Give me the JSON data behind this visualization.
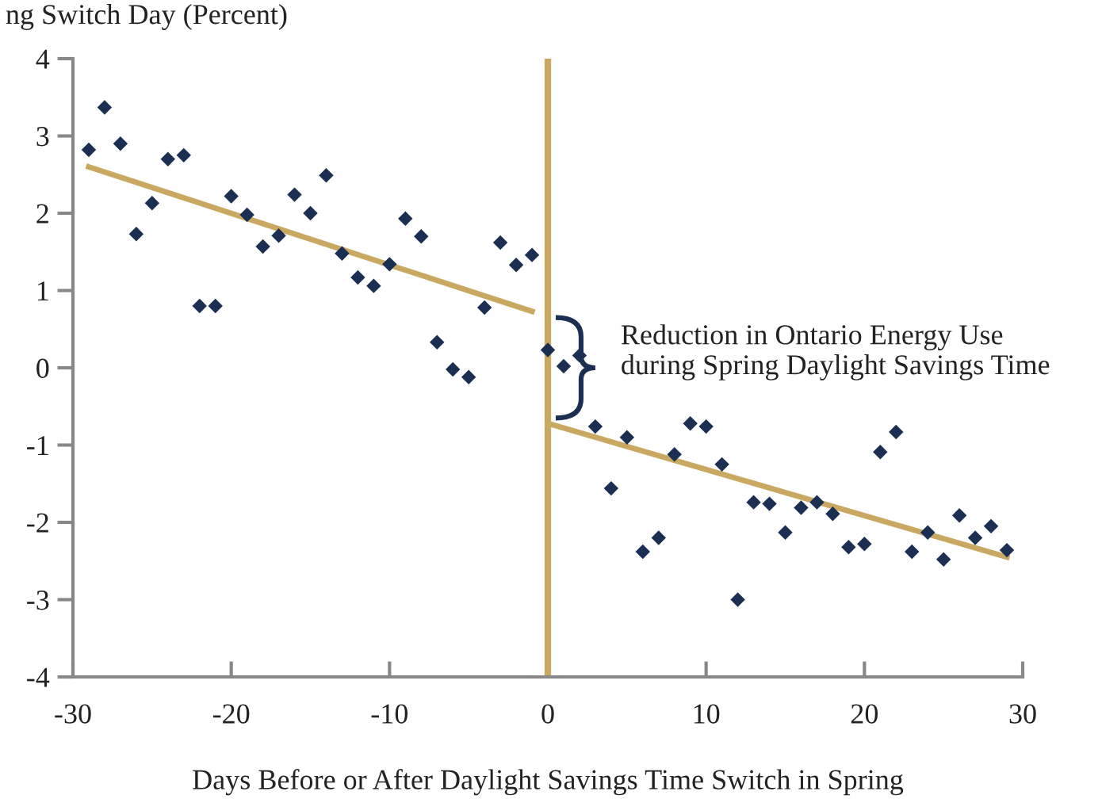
{
  "chart_data": {
    "type": "scatter",
    "ylabel": "ng Switch Day (Percent)",
    "xlabel": "Days Before or After Daylight Savings Time Switch in Spring",
    "annotations": [
      "Reduction in Ontario Energy Use\nduring Spring Daylight Savings Time"
    ],
    "series": [
      {
        "color": "#1b2f52",
        "marker": "diamond",
        "x": [
          -29,
          -28,
          -27,
          -26,
          -25,
          -24,
          -23,
          -22,
          -21,
          -20,
          -19,
          -18,
          -17,
          -16,
          -15,
          -14,
          -13,
          -12,
          -11,
          -10,
          -9,
          -8,
          -7,
          -6,
          -5,
          -4,
          -3,
          -2,
          -1,
          0,
          1,
          2,
          3,
          4,
          5,
          6,
          7,
          8,
          9,
          10,
          11,
          12,
          13,
          14,
          15,
          16,
          17,
          18,
          19,
          20,
          21,
          22,
          23,
          24,
          25,
          26,
          27,
          28,
          29
        ],
        "values": [
          2.82,
          3.37,
          2.9,
          1.73,
          2.13,
          2.7,
          2.75,
          0.8,
          0.8,
          2.22,
          1.98,
          1.57,
          1.71,
          2.24,
          2.0,
          2.49,
          1.48,
          1.17,
          1.06,
          1.34,
          1.93,
          1.7,
          0.33,
          -0.02,
          -0.12,
          0.78,
          1.62,
          1.33,
          1.46,
          0.23,
          0.02,
          0.16,
          -0.76,
          -1.56,
          -0.9,
          -2.38,
          -2.2,
          -1.12,
          -0.72,
          -0.76,
          -1.25,
          -3.0,
          -1.74,
          -1.76,
          -2.13,
          -1.81,
          -1.74,
          -1.89,
          -2.32,
          -2.28,
          -1.09,
          -0.83,
          -2.38,
          -2.13,
          -2.48,
          -1.91,
          -2.2,
          -2.05,
          -2.36
        ]
      },
      {
        "type": "line",
        "color": "#c9a961",
        "x": [
          -29,
          -1
        ],
        "values": [
          2.6,
          0.73
        ]
      },
      {
        "type": "line",
        "color": "#c9a961",
        "x": [
          0,
          29
        ],
        "values": [
          -0.72,
          -2.45
        ]
      }
    ],
    "ref_lines": [
      {
        "axis": "x",
        "value": 0,
        "color": "#c9a961"
      }
    ],
    "xlim": [
      -30,
      30
    ],
    "ylim": [
      -4,
      4
    ],
    "xticks": [
      -30,
      -20,
      -10,
      0,
      10,
      20,
      30
    ],
    "yticks": [
      4,
      3,
      2,
      1,
      0,
      -1,
      -2,
      -3,
      -4
    ],
    "grid": false
  }
}
